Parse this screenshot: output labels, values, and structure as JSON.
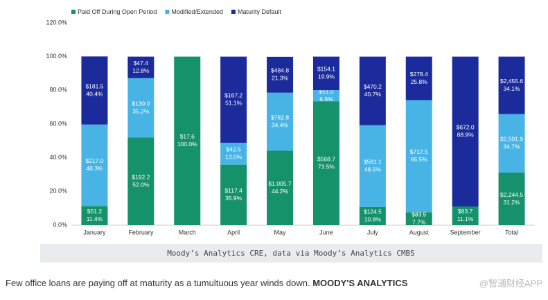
{
  "chart_data": {
    "type": "stacked_bar",
    "categories": [
      "January",
      "February",
      "March",
      "April",
      "May",
      "June",
      "July",
      "August",
      "September",
      "Total"
    ],
    "series": [
      {
        "name": "Paid Off During Open Period",
        "color": "#15916b",
        "values": [
          11.4,
          52.0,
          100.0,
          35.9,
          44.2,
          73.5,
          10.8,
          7.7,
          11.1,
          31.2
        ],
        "value_labels": [
          "11.4%",
          "52.0%",
          "100.0%",
          "35.9%",
          "44.2%",
          "73.5%",
          "10.8%",
          "7.7%",
          "11.1%",
          "31.2%"
        ],
        "amount_labels": [
          "$51.2",
          "$192.2",
          "$17.6",
          "$117.4",
          "$1,005.7",
          "$568.7",
          "$124.5",
          "$83.5",
          "$83.7",
          "$2,244.5"
        ]
      },
      {
        "name": "Modified/Extended",
        "color": "#47b4e5",
        "values": [
          48.3,
          35.2,
          0,
          13.0,
          34.4,
          6.6,
          48.5,
          66.5,
          0,
          34.7
        ],
        "value_labels": [
          "48.3%",
          "35.2%",
          null,
          "13.0%",
          "34.4%",
          "6.6%",
          "48.5%",
          "66.5%",
          null,
          "34.7%"
        ],
        "amount_labels": [
          "$217.0",
          "$130.0",
          null,
          "$42.5",
          "$782.8",
          "$51.0",
          "$561.1",
          "$717.5",
          null,
          "$2,501.9"
        ]
      },
      {
        "name": "Maturity Default",
        "color": "#1b2b9b",
        "values": [
          40.4,
          12.8,
          0,
          51.1,
          21.3,
          19.9,
          40.7,
          25.8,
          88.9,
          34.1
        ],
        "value_labels": [
          "40.4%",
          "12.8%",
          null,
          "51.1%",
          "21.3%",
          "19.9%",
          "40.7%",
          "25.8%",
          "88.9%",
          "34.1%"
        ],
        "amount_labels": [
          "$181.5",
          "$47.4",
          null,
          "$167.2",
          "$484.8",
          "$154.1",
          "$470.2",
          "$278.4",
          "$672.0",
          "$2,455.6"
        ]
      }
    ],
    "ylim": [
      0,
      120
    ],
    "yticks": [
      {
        "value": 0,
        "label": "0.0%"
      },
      {
        "value": 20,
        "label": "20.0%"
      },
      {
        "value": 40,
        "label": "40.0%"
      },
      {
        "value": 60,
        "label": "60.0%"
      },
      {
        "value": 80,
        "label": "80.0%"
      },
      {
        "value": 100,
        "label": "100.0%"
      },
      {
        "value": 120,
        "label": "120.0%"
      }
    ],
    "grid": false,
    "legend": "top",
    "source": "Moody’s Analytics CRE, data via Moody’s Analytics CMBS"
  },
  "caption": {
    "text": "Few office loans are paying off at maturity as a tumultuous year winds down.",
    "credit": "MOODY'S ANALYTICS"
  },
  "watermark": "@智通财经APP"
}
